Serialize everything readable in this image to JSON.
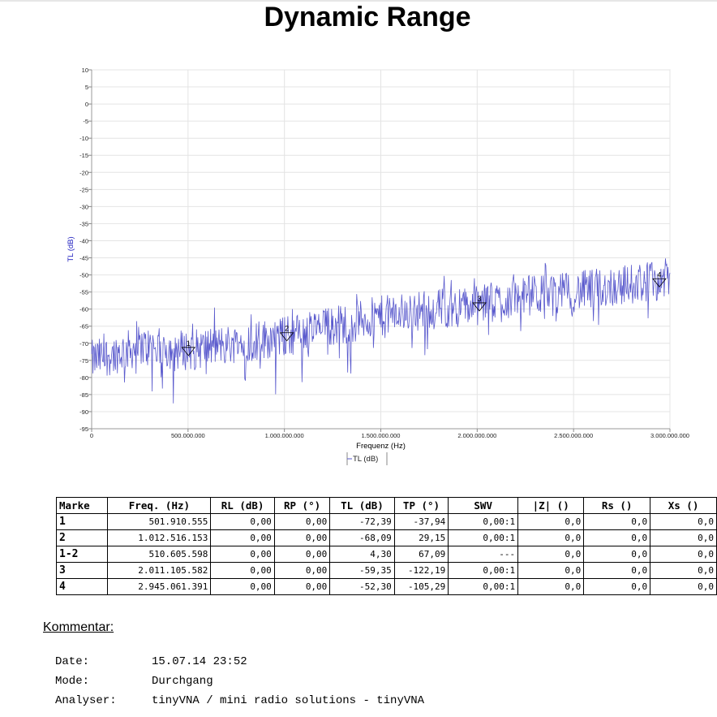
{
  "title": "Dynamic Range",
  "chart_data": {
    "type": "line",
    "xlabel": "Frequenz (Hz)",
    "ylabel": "TL (dB)",
    "xlim": [
      0,
      3000000000
    ],
    "ylim": [
      -95,
      10
    ],
    "x_ticks": [
      0,
      500000000,
      1000000000,
      1500000000,
      2000000000,
      2500000000,
      3000000000
    ],
    "x_tick_labels": [
      "0",
      "500.000.000",
      "1.000.000.000",
      "1.500.000.000",
      "2.000.000.000",
      "2.500.000.000",
      "3.000.000.000"
    ],
    "y_ticks": [
      10,
      5,
      0,
      -5,
      -10,
      -15,
      -20,
      -25,
      -30,
      -35,
      -40,
      -45,
      -50,
      -55,
      -60,
      -65,
      -70,
      -75,
      -80,
      -85,
      -90,
      -95
    ],
    "grid": true,
    "legend": {
      "position": "bottom-center",
      "entries": [
        "TL (dB)"
      ]
    },
    "series": [
      {
        "name": "TL (dB)",
        "color": "#5a5acd",
        "x_start": 0,
        "x_end": 3000000000,
        "trend": [
          [
            0,
            -75
          ],
          [
            250000000,
            -71
          ],
          [
            500000000,
            -72
          ],
          [
            750000000,
            -70
          ],
          [
            1000000000,
            -68
          ],
          [
            1250000000,
            -65
          ],
          [
            1500000000,
            -62
          ],
          [
            1750000000,
            -60
          ],
          [
            2000000000,
            -59
          ],
          [
            2250000000,
            -56
          ],
          [
            2500000000,
            -55
          ],
          [
            2750000000,
            -53
          ],
          [
            3000000000,
            -51
          ]
        ],
        "noise_amplitude_db": 6
      }
    ],
    "markers": [
      {
        "label": "1",
        "x": 501910555,
        "y": -72.39
      },
      {
        "label": "2",
        "x": 1012516153,
        "y": -68.09
      },
      {
        "label": "3",
        "x": 2011105582,
        "y": -59.35
      },
      {
        "label": "4",
        "x": 2945061391,
        "y": -52.3
      }
    ]
  },
  "marker_table": {
    "headers": [
      "Marke",
      "Freq. (Hz)",
      "RL (dB)",
      "RP (°)",
      "TL (dB)",
      "TP (°)",
      "SWV",
      "|Z| ()",
      "Rs ()",
      "Xs ()"
    ],
    "rows": [
      [
        "1",
        "501.910.555",
        "0,00",
        "0,00",
        "-72,39",
        "-37,94",
        "0,00:1",
        "0,0",
        "0,0",
        "0,0"
      ],
      [
        "2",
        "1.012.516.153",
        "0,00",
        "0,00",
        "-68,09",
        "29,15",
        "0,00:1",
        "0,0",
        "0,0",
        "0,0"
      ],
      [
        "1-2",
        "510.605.598",
        "0,00",
        "0,00",
        "4,30",
        "67,09",
        "---",
        "0,0",
        "0,0",
        "0,0"
      ],
      [
        "3",
        "2.011.105.582",
        "0,00",
        "0,00",
        "-59,35",
        "-122,19",
        "0,00:1",
        "0,0",
        "0,0",
        "0,0"
      ],
      [
        "4",
        "2.945.061.391",
        "0,00",
        "0,00",
        "-52,30",
        "-105,29",
        "0,00:1",
        "0,0",
        "0,0",
        "0,0"
      ]
    ]
  },
  "comment_heading": "Kommentar:",
  "info": {
    "date_label": "Date:",
    "date_value": "15.07.14 23:52",
    "mode_label": "Mode:",
    "mode_value": "Durchgang",
    "analyser_label": "Analyser:",
    "analyser_value": "tinyVNA / mini radio solutions - tinyVNA"
  }
}
